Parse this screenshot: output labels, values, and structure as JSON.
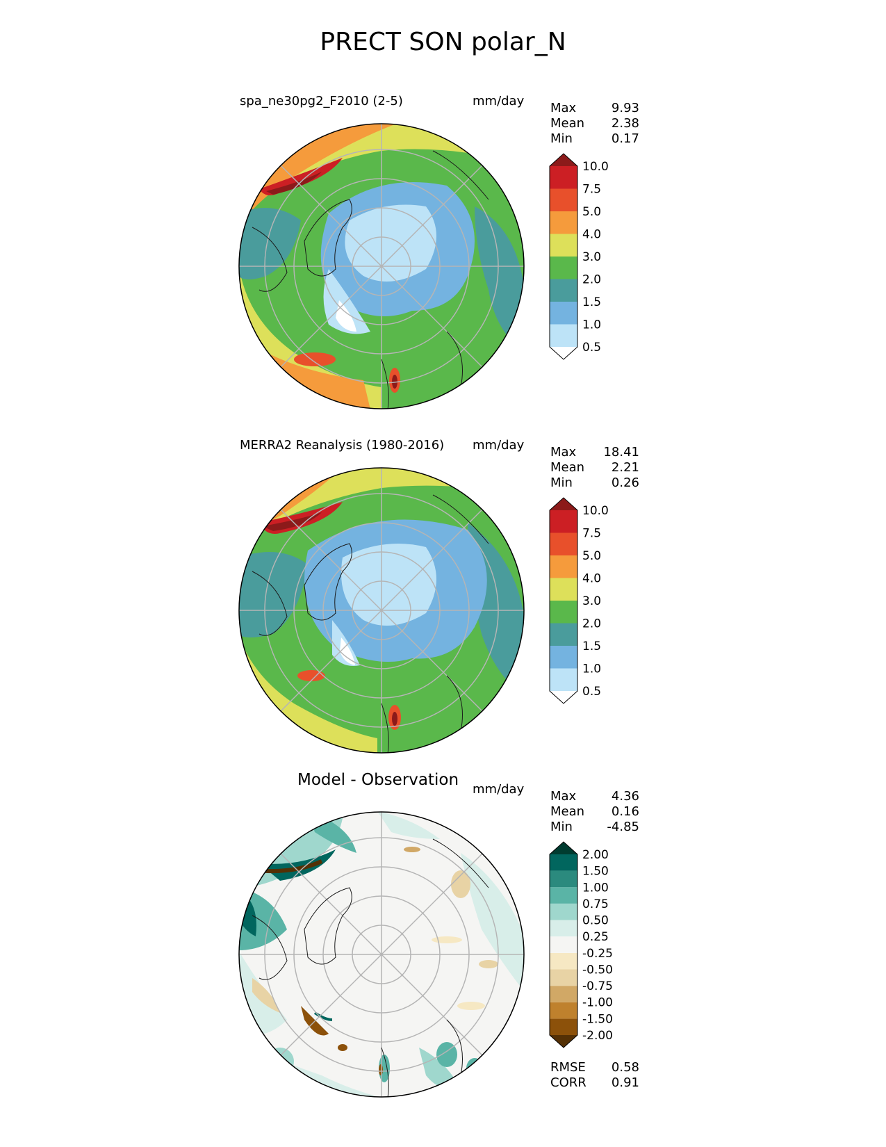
{
  "figure": {
    "title": "PRECT SON polar_N"
  },
  "panels": [
    {
      "id": "test",
      "title": "spa_ne30pg2_F2010 (2-5)",
      "title_align": "left",
      "units": "mm/day",
      "stats": [
        {
          "label": "Max",
          "value": "9.93"
        },
        {
          "label": "Mean",
          "value": "2.38"
        },
        {
          "label": "Min",
          "value": "0.17"
        }
      ],
      "colorbar": {
        "ticks": [
          "10.0",
          "7.5",
          "5.0",
          "4.0",
          "3.0",
          "2.0",
          "1.5",
          "1.0",
          "0.5"
        ],
        "colors": [
          "#ffffff",
          "#bde3f7",
          "#74b3e0",
          "#4a9c9c",
          "#5ab84b",
          "#dde05a",
          "#f59b3c",
          "#e8502b",
          "#cc1f24",
          "#8c1a1a"
        ]
      }
    },
    {
      "id": "reference",
      "title": "MERRA2 Reanalysis (1980-2016)",
      "title_align": "left",
      "units": "mm/day",
      "stats": [
        {
          "label": "Max",
          "value": "18.41"
        },
        {
          "label": "Mean",
          "value": "2.21"
        },
        {
          "label": "Min",
          "value": "0.26"
        }
      ],
      "colorbar": {
        "ticks": [
          "10.0",
          "7.5",
          "5.0",
          "4.0",
          "3.0",
          "2.0",
          "1.5",
          "1.0",
          "0.5"
        ],
        "colors": [
          "#ffffff",
          "#bde3f7",
          "#74b3e0",
          "#4a9c9c",
          "#5ab84b",
          "#dde05a",
          "#f59b3c",
          "#e8502b",
          "#cc1f24",
          "#8c1a1a"
        ]
      }
    },
    {
      "id": "difference",
      "title": "Model - Observation",
      "title_align": "center",
      "units": "mm/day",
      "stats": [
        {
          "label": "Max",
          "value": "4.36"
        },
        {
          "label": "Mean",
          "value": "0.16"
        },
        {
          "label": "Min",
          "value": "-4.85"
        }
      ],
      "colorbar": {
        "ticks": [
          "2.00",
          "1.50",
          "1.00",
          "0.75",
          "0.50",
          "0.25",
          "-0.25",
          "-0.50",
          "-0.75",
          "-1.00",
          "-1.50",
          "-2.00"
        ],
        "colors": [
          "#543005",
          "#8c510a",
          "#bf812d",
          "#d1a866",
          "#e8d3a5",
          "#f6e8c3",
          "#f5f5f3",
          "#d8eee9",
          "#9fd7cd",
          "#5ab4a6",
          "#2b8a7e",
          "#01665e",
          "#003c30"
        ]
      }
    }
  ],
  "metrics": [
    {
      "label": "RMSE",
      "value": "0.58"
    },
    {
      "label": "CORR",
      "value": "0.91"
    }
  ]
}
